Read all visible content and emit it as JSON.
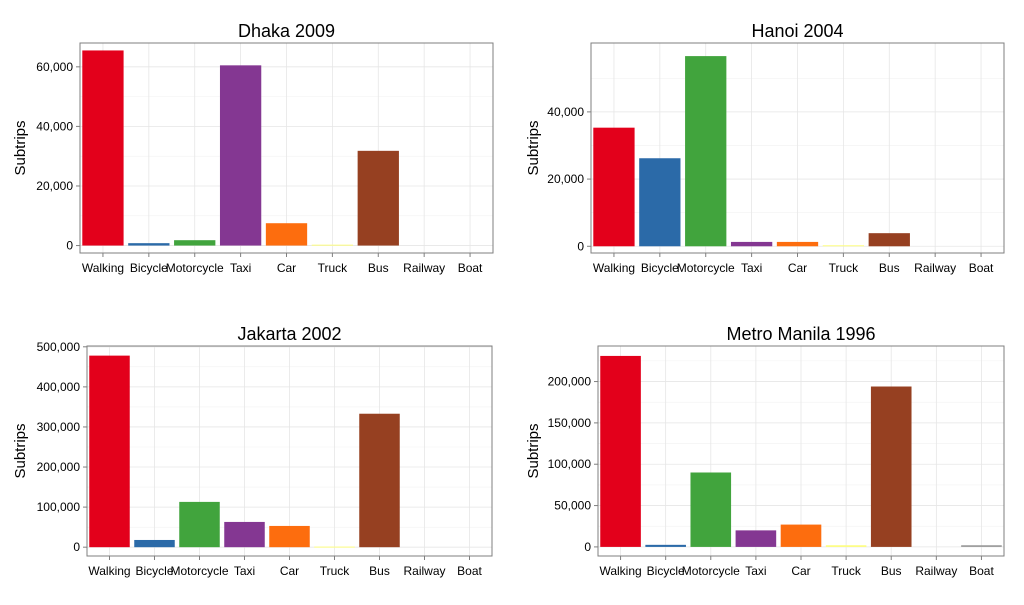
{
  "chart_data": [
    {
      "type": "bar",
      "title": "Dhaka 2009",
      "ylabel": "Subtrips",
      "xlabel": "",
      "categories": [
        "Walking",
        "Bicycle",
        "Motorcycle",
        "Taxi",
        "Car",
        "Truck",
        "Bus",
        "Railway",
        "Boat"
      ],
      "values": [
        65500,
        800,
        1800,
        60500,
        7500,
        300,
        31800,
        0,
        0
      ],
      "ylim": [
        -2500,
        68000
      ],
      "yticks": [
        0,
        20000,
        40000,
        60000
      ],
      "ytick_labels": [
        "0",
        "20,000",
        "40,000",
        "60,000"
      ],
      "grid": true
    },
    {
      "type": "bar",
      "title": "Hanoi 2004",
      "ylabel": "Subtrips",
      "xlabel": "",
      "categories": [
        "Walking",
        "Bicycle",
        "Motorcycle",
        "Taxi",
        "Car",
        "Truck",
        "Bus",
        "Railway",
        "Boat"
      ],
      "values": [
        35300,
        26200,
        56600,
        1300,
        1300,
        300,
        3900,
        0,
        0
      ],
      "ylim": [
        -2000,
        60500
      ],
      "yticks": [
        0,
        20000,
        40000
      ],
      "ytick_labels": [
        "0",
        "20,000",
        "40,000"
      ],
      "grid": true
    },
    {
      "type": "bar",
      "title": "Jakarta 2002",
      "ylabel": "Subtrips",
      "xlabel": "",
      "categories": [
        "Walking",
        "Bicycle",
        "Motorcycle",
        "Taxi",
        "Car",
        "Truck",
        "Bus",
        "Railway",
        "Boat"
      ],
      "values": [
        478000,
        18000,
        113000,
        63000,
        53000,
        1500,
        333000,
        0,
        0
      ],
      "ylim": [
        -22000,
        502000
      ],
      "yticks": [
        0,
        100000,
        200000,
        300000,
        400000,
        500000
      ],
      "ytick_labels": [
        "0",
        "100,000",
        "200,000",
        "300,000",
        "400,000",
        "500,000"
      ],
      "grid": true
    },
    {
      "type": "bar",
      "title": "Metro Manila 1996",
      "ylabel": "Subtrips",
      "xlabel": "",
      "categories": [
        "Walking",
        "Bicycle",
        "Motorcycle",
        "Taxi",
        "Car",
        "Truck",
        "Bus",
        "Railway",
        "Boat"
      ],
      "values": [
        231000,
        2500,
        90000,
        20000,
        27000,
        2000,
        194000,
        0,
        2000
      ],
      "ylim": [
        -11000,
        243000
      ],
      "yticks": [
        0,
        50000,
        100000,
        150000,
        200000
      ],
      "ytick_labels": [
        "0",
        "50,000",
        "100,000",
        "150,000",
        "200,000"
      ],
      "grid": true
    }
  ],
  "colors": {
    "Walking": "#e3001b",
    "Bicycle": "#2b6aa8",
    "Motorcycle": "#41a43d",
    "Taxi": "#843792",
    "Car": "#fd6d0e",
    "Truck": "#fefe7f",
    "Bus": "#964021",
    "Railway": "#f781bf",
    "Boat": "#999999"
  }
}
